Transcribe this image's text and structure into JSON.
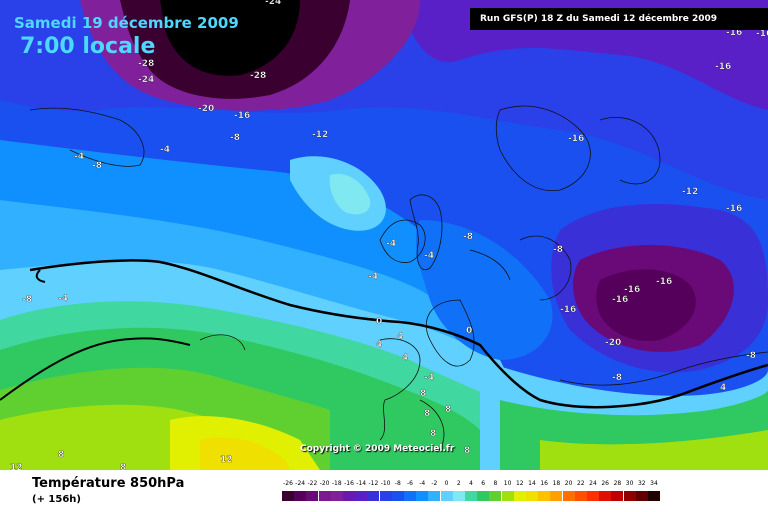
{
  "header": {
    "date": "Samedi 19 décembre 2009",
    "time": "7:00 locale",
    "run": "Run GFS(P) 18 Z du Samedi 12 décembre 2009"
  },
  "copyright": "Copyright © 2009 Meteociel.fr",
  "legend": {
    "title": "Température 850hPa",
    "hours": "(+ 156h)",
    "scale_labels": [
      "-26",
      "-24",
      "-22",
      "-20",
      "-18",
      "-16",
      "-14",
      "-12",
      "-10",
      "-8",
      "-6",
      "-4",
      "-2",
      "0",
      "2",
      "4",
      "6",
      "8",
      "10",
      "12",
      "14",
      "16",
      "18",
      "20",
      "22",
      "24",
      "26",
      "28",
      "30",
      "32",
      "34"
    ],
    "scale_colors": [
      "#3a0030",
      "#55005a",
      "#6a0a78",
      "#7a1a8e",
      "#80209a",
      "#6a1ab0",
      "#5a20c8",
      "#3a30d8",
      "#2a40e8",
      "#1a50f0",
      "#1070f8",
      "#1090ff",
      "#30b0ff",
      "#60d0ff",
      "#80e8f0",
      "#40d8a0",
      "#30c860",
      "#60d030",
      "#a0e010",
      "#e0f000",
      "#f0e000",
      "#ffc000",
      "#ffa000",
      "#ff7000",
      "#ff5000",
      "#ff3000",
      "#e01000",
      "#c00000",
      "#900000",
      "#600000",
      "#200000"
    ]
  },
  "map_labels": [
    {
      "text": "-24",
      "color": "#000"
    },
    {
      "text": "-28",
      "color": "#000"
    },
    {
      "text": "-24",
      "color": "#000"
    },
    {
      "text": "-28",
      "color": "#000"
    },
    {
      "text": "-20",
      "color": "#000"
    },
    {
      "text": "-16",
      "color": "#000"
    },
    {
      "text": "-16",
      "color": "#000"
    },
    {
      "text": "-12",
      "color": "#000"
    },
    {
      "text": "-8",
      "color": "#000"
    },
    {
      "text": "-4",
      "color": "#000"
    },
    {
      "text": "-8",
      "color": "#000"
    },
    {
      "text": "-4",
      "color": "#000"
    },
    {
      "text": "-8",
      "color": "#000"
    },
    {
      "text": "-16",
      "color": "#000"
    },
    {
      "text": "-12",
      "color": "#000"
    },
    {
      "text": "-16",
      "color": "#000"
    },
    {
      "text": "-16",
      "color": "#000"
    },
    {
      "text": "-8",
      "color": "#000"
    },
    {
      "text": "-8",
      "color": "#000"
    },
    {
      "text": "-4",
      "color": "#000"
    },
    {
      "text": "-4",
      "color": "#000"
    },
    {
      "text": "-4",
      "color": "#000"
    },
    {
      "text": "-16",
      "color": "#000"
    },
    {
      "text": "-16",
      "color": "#000"
    },
    {
      "text": "-16",
      "color": "#000"
    },
    {
      "text": "-16",
      "color": "#000"
    },
    {
      "text": "-20",
      "color": "#000"
    },
    {
      "text": "-8",
      "color": "#000"
    },
    {
      "text": "-8",
      "color": "#000"
    },
    {
      "text": "-4",
      "color": "#000"
    },
    {
      "text": "0",
      "color": "#000"
    },
    {
      "text": "0",
      "color": "#000"
    },
    {
      "text": "4",
      "color": "#000"
    },
    {
      "text": "4",
      "color": "#000"
    },
    {
      "text": "4",
      "color": "#000"
    },
    {
      "text": "4",
      "color": "#000"
    },
    {
      "text": "-4",
      "color": "#000"
    },
    {
      "text": "8",
      "color": "#000"
    },
    {
      "text": "8",
      "color": "#000"
    },
    {
      "text": "8",
      "color": "#000"
    },
    {
      "text": "8",
      "color": "#000"
    },
    {
      "text": "12",
      "color": "#000"
    },
    {
      "text": "12",
      "color": "#000"
    },
    {
      "text": "8",
      "color": "#000"
    },
    {
      "text": "8",
      "color": "#000"
    },
    {
      "text": "8",
      "color": "#000"
    },
    {
      "text": "-16",
      "color": "#000"
    }
  ]
}
